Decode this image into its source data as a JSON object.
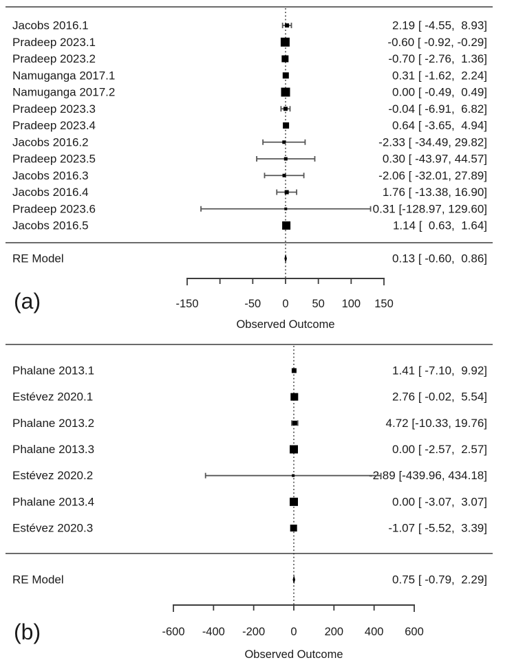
{
  "colors": {
    "marker": "#000000",
    "text": "#1a1a1a",
    "rule": "#6b6b6b",
    "whisker": "#565656",
    "axis": "#3c3c3c",
    "zero_line": "#222222",
    "background": "#ffffff"
  },
  "chart_data": [
    {
      "type": "scatter",
      "subtype": "forest-plot",
      "panel_tag": "(a)",
      "xlabel": "Observed Outcome",
      "x_axis": {
        "min": -150,
        "max": 150,
        "ticks": [
          -150,
          -100,
          -50,
          0,
          50,
          100,
          150
        ],
        "tick_labels": [
          "-150",
          "",
          "-50",
          "0",
          "50",
          "100",
          "150"
        ]
      },
      "zero_reference_line": 0,
      "studies": [
        {
          "label": "Jacobs 2016.1",
          "est": 2.19,
          "lo": -4.55,
          "hi": 8.93,
          "display": "2.19 [ -4.55,  8.93]",
          "size": 6
        },
        {
          "label": "Pradeep 2023.1",
          "est": -0.6,
          "lo": -0.92,
          "hi": -0.29,
          "display": "-0.60 [ -0.92, -0.29]",
          "size": 13
        },
        {
          "label": "Pradeep 2023.2",
          "est": -0.7,
          "lo": -2.76,
          "hi": 1.36,
          "display": "-0.70 [ -2.76,  1.36]",
          "size": 10
        },
        {
          "label": "Namuganga 2017.1",
          "est": 0.31,
          "lo": -1.62,
          "hi": 2.24,
          "display": "0.31 [ -1.62,  2.24]",
          "size": 9
        },
        {
          "label": "Namuganga 2017.2",
          "est": 0.0,
          "lo": -0.49,
          "hi": 0.49,
          "display": "0.00 [ -0.49,  0.49]",
          "size": 13
        },
        {
          "label": "Pradeep 2023.3",
          "est": -0.04,
          "lo": -6.91,
          "hi": 6.82,
          "display": "-0.04 [ -6.91,  6.82]",
          "size": 6
        },
        {
          "label": "Pradeep 2023.4",
          "est": 0.64,
          "lo": -3.65,
          "hi": 4.94,
          "display": "0.64 [ -3.65,  4.94]",
          "size": 9
        },
        {
          "label": "Jacobs 2016.2",
          "est": -2.33,
          "lo": -34.49,
          "hi": 29.82,
          "display": "-2.33 [ -34.49, 29.82]",
          "size": 5
        },
        {
          "label": "Pradeep 2023.5",
          "est": 0.3,
          "lo": -43.97,
          "hi": 44.57,
          "display": "0.30 [ -43.97, 44.57]",
          "size": 5
        },
        {
          "label": "Jacobs 2016.3",
          "est": -2.06,
          "lo": -32.01,
          "hi": 27.89,
          "display": "-2.06 [ -32.01, 27.89]",
          "size": 5
        },
        {
          "label": "Jacobs 2016.4",
          "est": 1.76,
          "lo": -13.38,
          "hi": 16.9,
          "display": "1.76 [ -13.38, 16.90]",
          "size": 6
        },
        {
          "label": "Pradeep 2023.6",
          "est": 0.31,
          "lo": -128.97,
          "hi": 129.6,
          "display": "0.31 [-128.97, 129.60]",
          "size": 4
        },
        {
          "label": "Jacobs 2016.5",
          "est": 1.14,
          "lo": 0.63,
          "hi": 1.64,
          "display": "1.14 [  0.63,  1.64]",
          "size": 12
        }
      ],
      "re_model": {
        "label": "RE Model",
        "est": 0.13,
        "lo": -0.6,
        "hi": 0.86,
        "display": "0.13 [ -0.60,  0.86]"
      }
    },
    {
      "type": "scatter",
      "subtype": "forest-plot",
      "panel_tag": "(b)",
      "xlabel": "Observed Outcome",
      "x_axis": {
        "min": -600,
        "max": 600,
        "ticks": [
          -600,
          -400,
          -200,
          0,
          200,
          400,
          600
        ],
        "tick_labels": [
          "-600",
          "-400",
          "-200",
          "0",
          "200",
          "400",
          "600"
        ]
      },
      "zero_reference_line": 0,
      "studies": [
        {
          "label": "Phalane 2013.1",
          "est": 1.41,
          "lo": -7.1,
          "hi": 9.92,
          "display": "1.41 [ -7.10,  9.92]",
          "size": 7
        },
        {
          "label": "Estévez 2020.1",
          "est": 2.76,
          "lo": -0.02,
          "hi": 5.54,
          "display": "2.76 [ -0.02,  5.54]",
          "size": 11
        },
        {
          "label": "Phalane 2013.2",
          "est": 4.72,
          "lo": -10.33,
          "hi": 19.76,
          "display": "4.72 [-10.33, 19.76]",
          "size": 7
        },
        {
          "label": "Phalane 2013.3",
          "est": 0.0,
          "lo": -2.57,
          "hi": 2.57,
          "display": "0.00 [ -2.57,  2.57]",
          "size": 12
        },
        {
          "label": "Estévez 2020.2",
          "est": -2.89,
          "lo": -439.96,
          "hi": 434.18,
          "display": "-2.89 [-439.96, 434.18]",
          "size": 4
        },
        {
          "label": "Phalane 2013.4",
          "est": 0.0,
          "lo": -3.07,
          "hi": 3.07,
          "display": "0.00 [ -3.07,  3.07]",
          "size": 12
        },
        {
          "label": "Estévez 2020.3",
          "est": -1.07,
          "lo": -5.52,
          "hi": 3.39,
          "display": "-1.07 [ -5.52,  3.39]",
          "size": 10
        }
      ],
      "re_model": {
        "label": "RE Model",
        "est": 0.75,
        "lo": -0.79,
        "hi": 2.29,
        "display": "0.75 [ -0.79,  2.29]"
      }
    }
  ]
}
